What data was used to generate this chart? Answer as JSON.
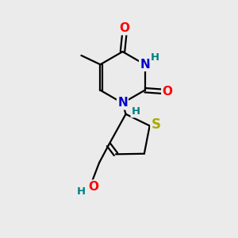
{
  "bg_color": "#ebebeb",
  "bond_color": "#000000",
  "bond_lw": 1.6,
  "colors": {
    "O": "#ff0000",
    "N": "#0000cc",
    "S": "#aaaa00",
    "H": "#008080",
    "C": "#000000"
  },
  "font_size_atom": 11,
  "font_size_h": 9.5,
  "font_size_sub": 8
}
